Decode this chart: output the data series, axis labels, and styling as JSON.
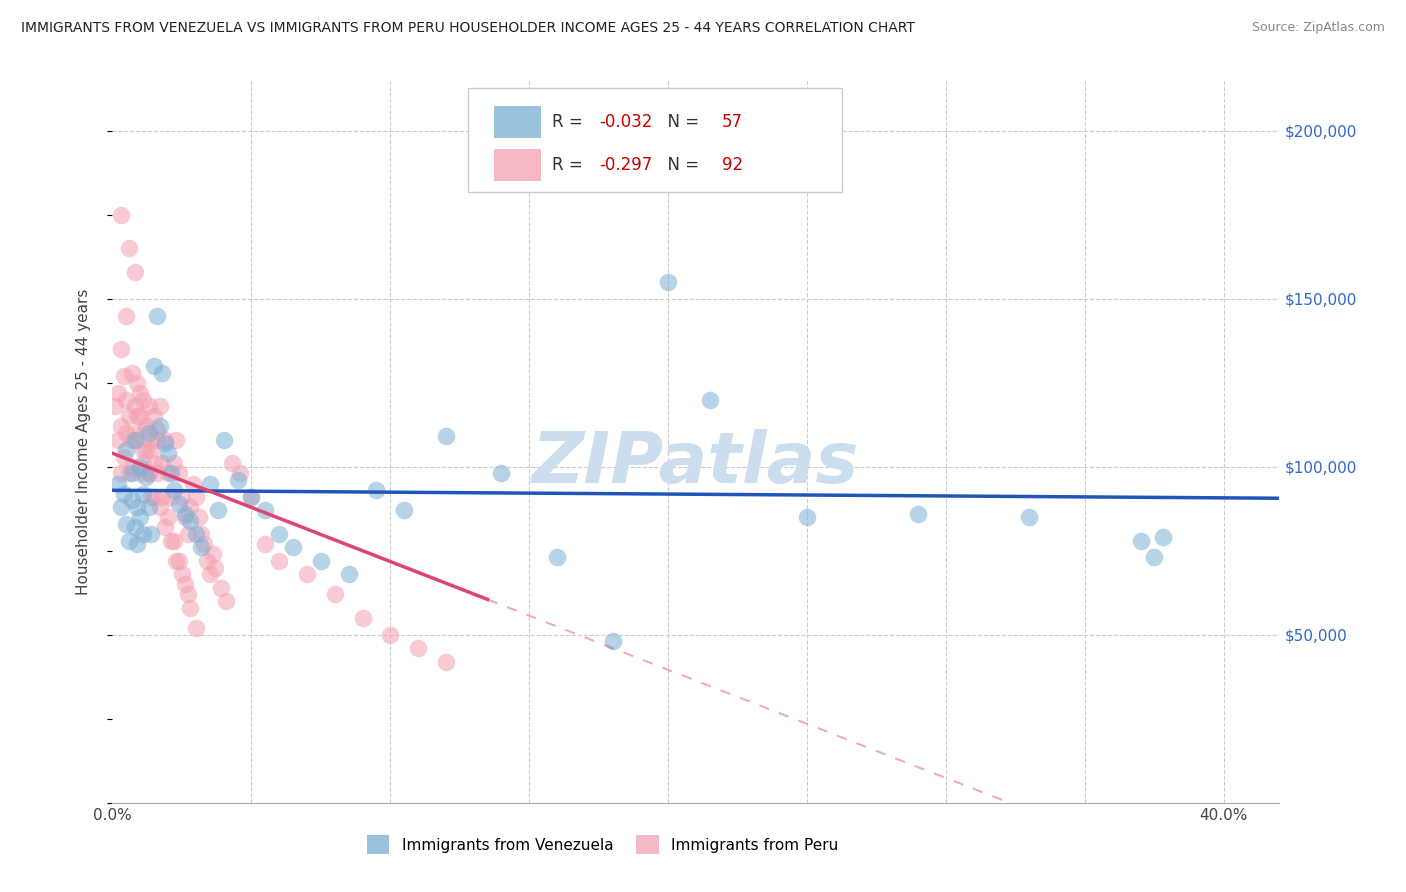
{
  "title": "IMMIGRANTS FROM VENEZUELA VS IMMIGRANTS FROM PERU HOUSEHOLDER INCOME AGES 25 - 44 YEARS CORRELATION CHART",
  "source": "Source: ZipAtlas.com",
  "ylabel": "Householder Income Ages 25 - 44 years",
  "xlim": [
    0.0,
    0.42
  ],
  "ylim": [
    0,
    215000
  ],
  "xticks": [
    0.0,
    0.05,
    0.1,
    0.15,
    0.2,
    0.25,
    0.3,
    0.35,
    0.4
  ],
  "ytick_positions": [
    50000,
    100000,
    150000,
    200000
  ],
  "ytick_labels": [
    "$50,000",
    "$100,000",
    "$150,000",
    "$200,000"
  ],
  "venezuela_color": "#7bafd4",
  "peru_color": "#f4a0b0",
  "venezuela_line_color": "#2255bb",
  "peru_line_color": "#dd4477",
  "venezuela_R": -0.032,
  "venezuela_N": 57,
  "peru_R": -0.297,
  "peru_N": 92,
  "watermark": "ZIPatlas",
  "watermark_color": "#ccdded",
  "venezuela_x": [
    0.002,
    0.003,
    0.004,
    0.005,
    0.005,
    0.006,
    0.007,
    0.007,
    0.008,
    0.008,
    0.009,
    0.009,
    0.01,
    0.01,
    0.011,
    0.011,
    0.012,
    0.013,
    0.013,
    0.014,
    0.015,
    0.016,
    0.017,
    0.018,
    0.019,
    0.02,
    0.021,
    0.022,
    0.024,
    0.026,
    0.028,
    0.03,
    0.032,
    0.035,
    0.038,
    0.04,
    0.045,
    0.05,
    0.055,
    0.06,
    0.065,
    0.075,
    0.085,
    0.095,
    0.105,
    0.12,
    0.14,
    0.16,
    0.18,
    0.2,
    0.215,
    0.25,
    0.29,
    0.33,
    0.37,
    0.375,
    0.378
  ],
  "venezuela_y": [
    95000,
    88000,
    92000,
    105000,
    83000,
    78000,
    90000,
    98000,
    82000,
    108000,
    88000,
    77000,
    100000,
    85000,
    92000,
    80000,
    97000,
    110000,
    88000,
    80000,
    130000,
    145000,
    112000,
    128000,
    107000,
    104000,
    98000,
    93000,
    89000,
    86000,
    84000,
    80000,
    76000,
    95000,
    87000,
    108000,
    96000,
    91000,
    87000,
    80000,
    76000,
    72000,
    68000,
    93000,
    87000,
    109000,
    98000,
    73000,
    48000,
    155000,
    120000,
    85000,
    86000,
    85000,
    78000,
    73000,
    79000
  ],
  "peru_x": [
    0.001,
    0.002,
    0.002,
    0.003,
    0.003,
    0.004,
    0.004,
    0.005,
    0.005,
    0.006,
    0.006,
    0.007,
    0.007,
    0.008,
    0.008,
    0.009,
    0.009,
    0.01,
    0.01,
    0.011,
    0.011,
    0.012,
    0.012,
    0.013,
    0.013,
    0.014,
    0.014,
    0.015,
    0.015,
    0.016,
    0.016,
    0.017,
    0.018,
    0.019,
    0.02,
    0.021,
    0.022,
    0.023,
    0.024,
    0.025,
    0.026,
    0.027,
    0.028,
    0.029,
    0.03,
    0.031,
    0.032,
    0.033,
    0.034,
    0.035,
    0.036,
    0.037,
    0.039,
    0.041,
    0.043,
    0.046,
    0.05,
    0.055,
    0.06,
    0.07,
    0.08,
    0.09,
    0.1,
    0.11,
    0.12,
    0.003,
    0.005,
    0.007,
    0.009,
    0.011,
    0.013,
    0.015,
    0.017,
    0.019,
    0.021,
    0.023,
    0.025,
    0.027,
    0.003,
    0.006,
    0.008,
    0.01,
    0.012,
    0.014,
    0.016,
    0.018,
    0.02,
    0.022,
    0.024,
    0.026,
    0.028,
    0.03
  ],
  "peru_y": [
    118000,
    108000,
    122000,
    98000,
    112000,
    103000,
    127000,
    110000,
    120000,
    98000,
    115000,
    108000,
    100000,
    118000,
    110000,
    125000,
    108000,
    98000,
    115000,
    101000,
    120000,
    111000,
    105000,
    118000,
    98000,
    91000,
    108000,
    101000,
    115000,
    108000,
    111000,
    118000,
    101000,
    108000,
    98000,
    91000,
    101000,
    108000,
    98000,
    91000,
    85000,
    80000,
    88000,
    95000,
    91000,
    85000,
    80000,
    77000,
    72000,
    68000,
    74000,
    70000,
    64000,
    60000,
    101000,
    98000,
    91000,
    77000,
    72000,
    68000,
    62000,
    55000,
    50000,
    46000,
    42000,
    135000,
    145000,
    128000,
    115000,
    105000,
    98000,
    91000,
    88000,
    82000,
    78000,
    72000,
    68000,
    62000,
    175000,
    165000,
    158000,
    122000,
    112000,
    105000,
    98000,
    91000,
    85000,
    78000,
    72000,
    65000,
    58000,
    52000
  ]
}
